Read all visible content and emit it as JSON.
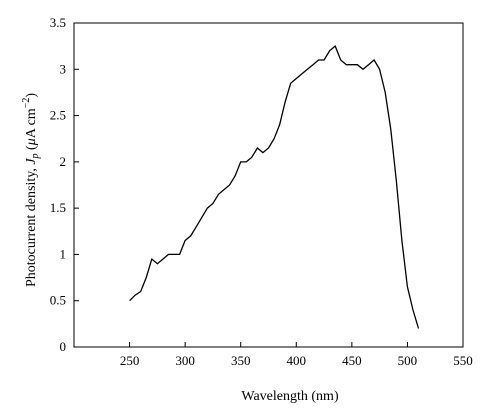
{
  "chart_data": {
    "type": "line",
    "xlabel": "Wavelength (nm)",
    "ylabel_main": "Photocurrent density, ",
    "ylabel_var": "J",
    "ylabel_sub": "p",
    "ylabel_unit_open": " (",
    "ylabel_unit_mu": "μ",
    "ylabel_unit_rest": "A cm",
    "ylabel_unit_exp": "−2",
    "ylabel_unit_close": ")",
    "xlim": [
      200,
      550
    ],
    "ylim": [
      0,
      3.5
    ],
    "xticks": [
      250,
      300,
      350,
      400,
      450,
      500,
      550
    ],
    "yticks": [
      0,
      0.5,
      1,
      1.5,
      2,
      2.5,
      3,
      3.5
    ],
    "xtick_labels": [
      "250",
      "300",
      "350",
      "400",
      "450",
      "500",
      "550"
    ],
    "ytick_labels": [
      "0",
      "0.5",
      "1",
      "1.5",
      "2",
      "2.5",
      "3",
      "3.5"
    ],
    "grid": false,
    "series": [
      {
        "x": [
          250,
          255,
          260,
          265,
          270,
          275,
          280,
          285,
          290,
          295,
          300,
          305,
          310,
          315,
          320,
          325,
          330,
          335,
          340,
          345,
          350,
          355,
          360,
          365,
          370,
          375,
          380,
          385,
          390,
          395,
          400,
          405,
          410,
          415,
          420,
          425,
          430,
          435,
          440,
          445,
          450,
          455,
          460,
          465,
          470,
          475,
          480,
          485,
          490,
          495,
          500,
          505,
          510
        ],
        "y": [
          0.5,
          0.56,
          0.6,
          0.75,
          0.95,
          0.9,
          0.95,
          1.0,
          1.0,
          1.0,
          1.15,
          1.2,
          1.3,
          1.4,
          1.5,
          1.55,
          1.65,
          1.7,
          1.75,
          1.85,
          2.0,
          2.0,
          2.05,
          2.15,
          2.1,
          2.15,
          2.25,
          2.4,
          2.65,
          2.85,
          2.9,
          2.95,
          3.0,
          3.05,
          3.1,
          3.1,
          3.2,
          3.25,
          3.1,
          3.05,
          3.05,
          3.05,
          3.0,
          3.05,
          3.1,
          3.0,
          2.75,
          2.35,
          1.8,
          1.15,
          0.65,
          0.4,
          0.2
        ]
      }
    ]
  }
}
